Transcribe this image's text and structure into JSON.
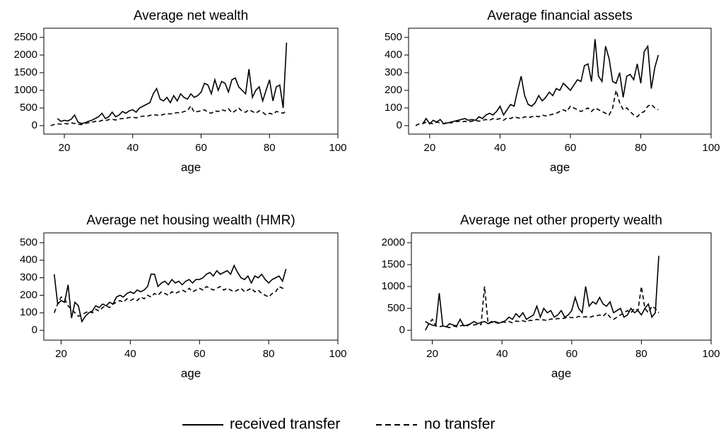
{
  "chart_data": [
    {
      "type": "line",
      "title": "Average net wealth",
      "x_label": "age",
      "x": [
        16,
        17,
        18,
        19,
        20,
        21,
        22,
        23,
        24,
        25,
        26,
        27,
        28,
        29,
        30,
        31,
        32,
        33,
        34,
        35,
        36,
        37,
        38,
        39,
        40,
        41,
        42,
        43,
        44,
        45,
        46,
        47,
        48,
        49,
        50,
        51,
        52,
        53,
        54,
        55,
        56,
        57,
        58,
        59,
        60,
        61,
        62,
        63,
        64,
        65,
        66,
        67,
        68,
        69,
        70,
        71,
        72,
        73,
        74,
        75,
        76,
        77,
        78,
        79,
        80,
        81,
        82,
        83,
        84,
        85
      ],
      "xlim": [
        14,
        100
      ],
      "xticks": [
        20,
        40,
        60,
        80,
        100
      ],
      "ylim": [
        -240,
        2760
      ],
      "yticks": [
        0,
        500,
        1000,
        1500,
        2000,
        2500
      ],
      "series": [
        {
          "name": "received transfer",
          "color": "#000000",
          "line_style": "solid",
          "values": [
            null,
            null,
            200,
            120,
            150,
            130,
            180,
            300,
            100,
            60,
            80,
            120,
            150,
            200,
            250,
            350,
            200,
            250,
            380,
            250,
            300,
            400,
            350,
            420,
            450,
            380,
            500,
            550,
            600,
            650,
            900,
            1050,
            750,
            700,
            800,
            650,
            850,
            700,
            900,
            800,
            750,
            900,
            800,
            850,
            950,
            1200,
            1150,
            900,
            1300,
            1000,
            1250,
            1200,
            950,
            1300,
            1350,
            1100,
            1000,
            900,
            1600,
            800,
            1000,
            1100,
            700,
            1000,
            1300,
            700,
            1100,
            1150,
            500,
            2350
          ]
        },
        {
          "name": "no transfer",
          "color": "#000000",
          "line_style": "dashed",
          "values": [
            0,
            30,
            50,
            40,
            60,
            50,
            80,
            60,
            40,
            30,
            60,
            80,
            90,
            120,
            110,
            150,
            140,
            170,
            180,
            160,
            190,
            200,
            210,
            230,
            240,
            220,
            250,
            270,
            260,
            290,
            310,
            300,
            280,
            320,
            340,
            330,
            350,
            370,
            360,
            400,
            420,
            560,
            380,
            400,
            420,
            450,
            380,
            350,
            420,
            400,
            450,
            420,
            480,
            360,
            420,
            500,
            400,
            380,
            450,
            400,
            350,
            420,
            380,
            300,
            350,
            320,
            400,
            380,
            350,
            420
          ]
        }
      ]
    },
    {
      "type": "line",
      "title": "Average financial assets",
      "x_label": "age",
      "x": [
        16,
        17,
        18,
        19,
        20,
        21,
        22,
        23,
        24,
        25,
        26,
        27,
        28,
        29,
        30,
        31,
        32,
        33,
        34,
        35,
        36,
        37,
        38,
        39,
        40,
        41,
        42,
        43,
        44,
        45,
        46,
        47,
        48,
        49,
        50,
        51,
        52,
        53,
        54,
        55,
        56,
        57,
        58,
        59,
        60,
        61,
        62,
        63,
        64,
        65,
        66,
        67,
        68,
        69,
        70,
        71,
        72,
        73,
        74,
        75,
        76,
        77,
        78,
        79,
        80,
        81,
        82,
        83,
        84,
        85
      ],
      "xlim": [
        14,
        100
      ],
      "xticks": [
        20,
        40,
        60,
        80,
        100
      ],
      "ylim": [
        -48,
        552
      ],
      "yticks": [
        0,
        100,
        200,
        300,
        400,
        500
      ],
      "series": [
        {
          "name": "received transfer",
          "color": "#000000",
          "line_style": "solid",
          "values": [
            null,
            null,
            10,
            40,
            10,
            30,
            20,
            35,
            10,
            15,
            20,
            25,
            30,
            35,
            40,
            30,
            35,
            30,
            50,
            40,
            60,
            70,
            60,
            80,
            110,
            60,
            90,
            120,
            110,
            200,
            280,
            170,
            120,
            110,
            130,
            170,
            140,
            160,
            190,
            170,
            210,
            200,
            240,
            220,
            200,
            230,
            260,
            250,
            340,
            350,
            250,
            490,
            280,
            250,
            450,
            380,
            250,
            240,
            300,
            160,
            280,
            290,
            260,
            350,
            240,
            420,
            450,
            210,
            330,
            400
          ]
        },
        {
          "name": "no transfer",
          "color": "#000000",
          "line_style": "dashed",
          "values": [
            0,
            10,
            10,
            20,
            15,
            10,
            20,
            15,
            10,
            20,
            15,
            20,
            25,
            20,
            25,
            20,
            25,
            30,
            25,
            30,
            35,
            30,
            40,
            35,
            40,
            30,
            45,
            40,
            50,
            45,
            40,
            50,
            45,
            50,
            55,
            50,
            60,
            55,
            60,
            65,
            70,
            80,
            90,
            80,
            110,
            100,
            90,
            80,
            90,
            100,
            80,
            100,
            90,
            80,
            70,
            60,
            100,
            200,
            130,
            90,
            100,
            80,
            60,
            50,
            70,
            80,
            110,
            120,
            100,
            90
          ]
        }
      ]
    },
    {
      "type": "line",
      "title": "Average net housing wealth (HMR)",
      "x_label": "age",
      "x": [
        16,
        17,
        18,
        19,
        20,
        21,
        22,
        23,
        24,
        25,
        26,
        27,
        28,
        29,
        30,
        31,
        32,
        33,
        34,
        35,
        36,
        37,
        38,
        39,
        40,
        41,
        42,
        43,
        44,
        45,
        46,
        47,
        48,
        49,
        50,
        51,
        52,
        53,
        54,
        55,
        56,
        57,
        58,
        59,
        60,
        61,
        62,
        63,
        64,
        65,
        66,
        67,
        68,
        69,
        70,
        71,
        72,
        73,
        74,
        75,
        76,
        77,
        78,
        79,
        80,
        81,
        82,
        83,
        84,
        85
      ],
      "xlim": [
        15,
        100
      ],
      "xticks": [
        20,
        40,
        60,
        80,
        100
      ],
      "ylim": [
        -56,
        556
      ],
      "yticks": [
        0,
        100,
        200,
        300,
        400,
        500
      ],
      "series": [
        {
          "name": "received transfer",
          "color": "#000000",
          "line_style": "solid",
          "values": [
            null,
            null,
            320,
            150,
            170,
            160,
            260,
            70,
            160,
            140,
            50,
            80,
            100,
            110,
            140,
            130,
            150,
            140,
            160,
            150,
            190,
            200,
            190,
            210,
            220,
            210,
            230,
            220,
            230,
            250,
            320,
            320,
            250,
            270,
            280,
            260,
            290,
            270,
            280,
            260,
            280,
            290,
            270,
            290,
            290,
            300,
            320,
            330,
            310,
            340,
            320,
            330,
            340,
            320,
            370,
            330,
            300,
            290,
            310,
            270,
            310,
            300,
            320,
            290,
            270,
            290,
            300,
            310,
            280,
            350
          ]
        },
        {
          "name": "no transfer",
          "color": "#000000",
          "line_style": "dashed",
          "values": [
            null,
            null,
            100,
            150,
            190,
            180,
            140,
            120,
            100,
            80,
            90,
            100,
            110,
            100,
            120,
            110,
            130,
            140,
            130,
            150,
            160,
            170,
            160,
            180,
            170,
            180,
            170,
            190,
            180,
            200,
            190,
            210,
            200,
            220,
            210,
            200,
            220,
            210,
            220,
            230,
            220,
            240,
            220,
            230,
            240,
            230,
            250,
            240,
            230,
            240,
            250,
            230,
            240,
            230,
            220,
            230,
            240,
            220,
            230,
            240,
            220,
            230,
            210,
            200,
            190,
            210,
            220,
            250,
            240,
            240
          ]
        }
      ]
    },
    {
      "type": "line",
      "title": "Average net other property wealth",
      "x_label": "age",
      "x": [
        16,
        17,
        18,
        19,
        20,
        21,
        22,
        23,
        24,
        25,
        26,
        27,
        28,
        29,
        30,
        31,
        32,
        33,
        34,
        35,
        36,
        37,
        38,
        39,
        40,
        41,
        42,
        43,
        44,
        45,
        46,
        47,
        48,
        49,
        50,
        51,
        52,
        53,
        54,
        55,
        56,
        57,
        58,
        59,
        60,
        61,
        62,
        63,
        64,
        65,
        66,
        67,
        68,
        69,
        70,
        71,
        72,
        73,
        74,
        75,
        76,
        77,
        78,
        79,
        80,
        81,
        82,
        83,
        84,
        85
      ],
      "xlim": [
        14,
        100
      ],
      "xticks": [
        20,
        40,
        60,
        80,
        100
      ],
      "ylim": [
        -225,
        2225
      ],
      "yticks": [
        0,
        500,
        1000,
        1500,
        2000
      ],
      "series": [
        {
          "name": "received transfer",
          "color": "#000000",
          "line_style": "solid",
          "values": [
            null,
            null,
            0,
            150,
            120,
            100,
            850,
            100,
            80,
            150,
            120,
            100,
            250,
            100,
            120,
            150,
            200,
            150,
            180,
            200,
            150,
            180,
            200,
            170,
            180,
            220,
            300,
            250,
            380,
            300,
            400,
            250,
            300,
            350,
            550,
            300,
            500,
            400,
            450,
            300,
            350,
            450,
            300,
            350,
            450,
            750,
            500,
            400,
            1000,
            550,
            650,
            600,
            750,
            600,
            550,
            650,
            400,
            450,
            500,
            300,
            350,
            500,
            400,
            450,
            350,
            500,
            600,
            300,
            400,
            1700
          ]
        },
        {
          "name": "no transfer",
          "color": "#000000",
          "line_style": "dashed",
          "values": [
            null,
            null,
            200,
            150,
            250,
            100,
            80,
            100,
            80,
            60,
            100,
            80,
            100,
            120,
            100,
            150,
            120,
            140,
            130,
            1000,
            150,
            200,
            180,
            160,
            200,
            180,
            200,
            170,
            210,
            200,
            220,
            190,
            230,
            220,
            250,
            230,
            240,
            220,
            260,
            250,
            270,
            260,
            280,
            300,
            290,
            280,
            320,
            300,
            310,
            290,
            320,
            330,
            350,
            320,
            400,
            300,
            250,
            300,
            350,
            400,
            450,
            400,
            500,
            450,
            1000,
            500,
            400,
            550,
            500,
            400
          ]
        }
      ]
    }
  ]
}
